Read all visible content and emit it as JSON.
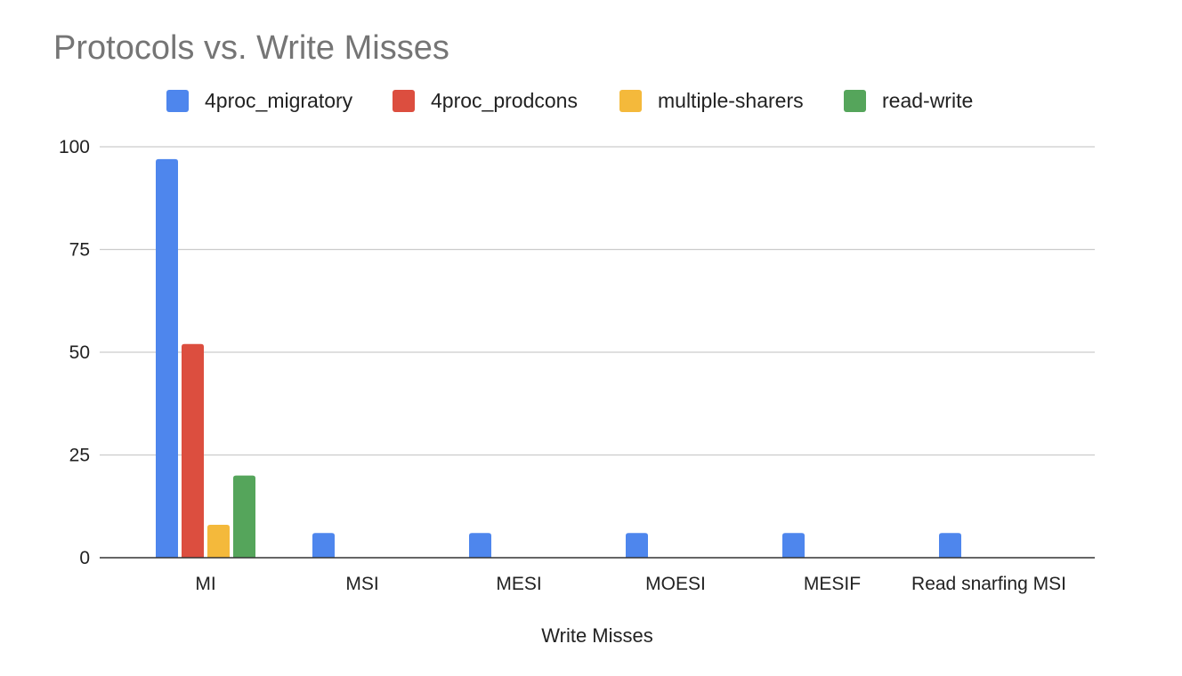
{
  "chart_data": {
    "type": "bar",
    "title": "Protocols vs. Write Misses",
    "xlabel": "Write Misses",
    "ylabel": "",
    "ylim": [
      0,
      100
    ],
    "yticks": [
      0,
      25,
      50,
      75,
      100
    ],
    "grid": true,
    "legend_position": "top",
    "categories": [
      "MI",
      "MSI",
      "MESI",
      "MOESI",
      "MESIF",
      "Read snarfing MSI"
    ],
    "series": [
      {
        "name": "4proc_migratory",
        "color": "#4e86ed",
        "values": [
          97,
          6,
          6,
          6,
          6,
          6
        ]
      },
      {
        "name": "4proc_prodcons",
        "color": "#dc4e3f",
        "values": [
          52,
          0,
          0,
          0,
          0,
          0
        ]
      },
      {
        "name": "multiple-sharers",
        "color": "#f4b93b",
        "values": [
          8,
          0,
          0,
          0,
          0,
          0
        ]
      },
      {
        "name": "read-write",
        "color": "#55a55b",
        "values": [
          20,
          0,
          0,
          0,
          0,
          0
        ]
      }
    ]
  }
}
